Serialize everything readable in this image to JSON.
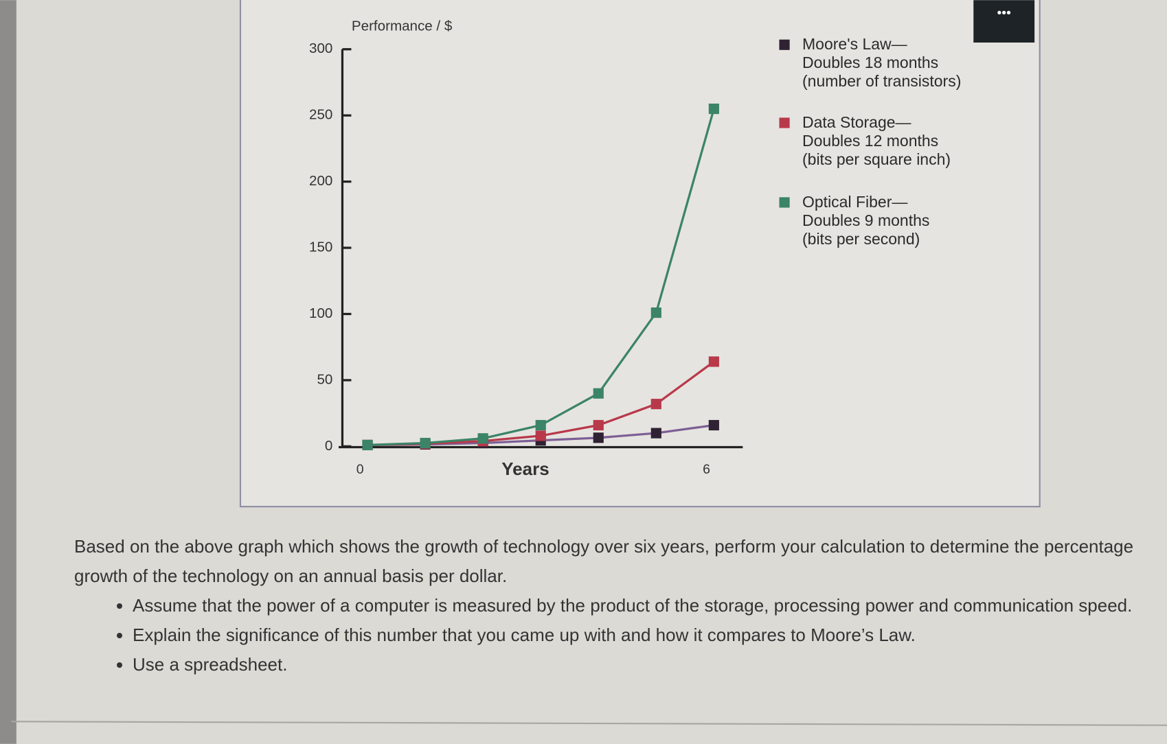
{
  "chart_data": {
    "type": "line",
    "y_axis_label": "Performance / $",
    "x_axis_label": "Years",
    "x": [
      0,
      1,
      2,
      3,
      4,
      5,
      6
    ],
    "xlim": [
      -0.5,
      6.5
    ],
    "xticks": [
      0,
      6
    ],
    "ylim": [
      0,
      300
    ],
    "yticks": [
      0,
      50,
      100,
      150,
      200,
      250,
      300
    ],
    "legend": "right",
    "series": [
      {
        "name": "Moore's Law—\nDoubles 18 months\n(number of transistors)",
        "color": "#2e2233",
        "line_color": "#7d5f95",
        "values": [
          1,
          1.5,
          2.5,
          4.5,
          6.5,
          10,
          16
        ]
      },
      {
        "name": "Data Storage—\nDoubles 12 months\n(bits per square inch)",
        "color": "#b8394a",
        "line_color": "#b8394a",
        "values": [
          1,
          2,
          4,
          8,
          16,
          32,
          64
        ]
      },
      {
        "name": "Optical Fiber—\nDoubles 9 months\n(bits per second)",
        "color": "#3b8467",
        "line_color": "#3b8467",
        "values": [
          1,
          2.5,
          6,
          16,
          40,
          101,
          255
        ]
      }
    ]
  },
  "menu_button": "•••",
  "question": {
    "paragraph": "Based on the above graph which shows the growth of technology over six years, perform your calculation to determine the percentage growth of the technology on an annual basis per dollar.",
    "bullets": [
      "Assume that the power of a computer is measured by the product of the storage, processing power and communication speed.",
      "Explain the significance of this number that you came up with and how it compares to Moore’s Law.",
      "Use a spreadsheet."
    ]
  }
}
